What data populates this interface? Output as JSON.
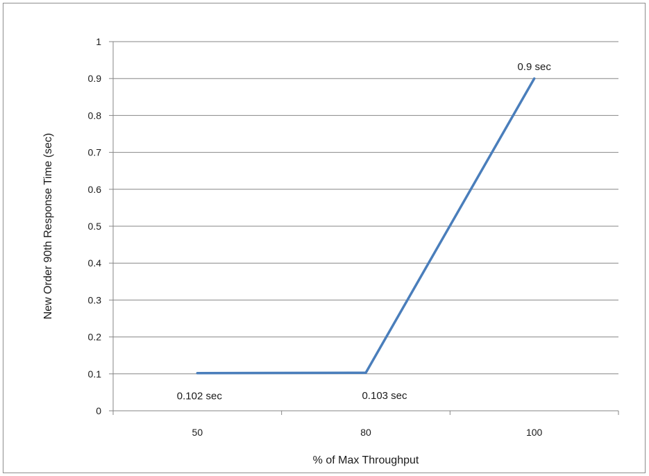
{
  "chart_data": {
    "type": "line",
    "title": "",
    "xlabel": "% of Max Throughput",
    "ylabel": "New Order 90th Response Time (sec)",
    "categories": [
      "50",
      "80",
      "100"
    ],
    "series": [
      {
        "values": [
          0.102,
          0.103,
          0.9
        ]
      }
    ],
    "data_labels": [
      "0.102 sec",
      "0.103 sec",
      "0.9 sec"
    ],
    "ylim": [
      0,
      1
    ],
    "yticks": [
      0,
      0.1,
      0.2,
      0.3,
      0.4,
      0.5,
      0.6,
      0.7,
      0.8,
      0.9,
      1
    ],
    "grid": "horizontal",
    "legend": "none",
    "line_color": "#4a7ebb"
  }
}
